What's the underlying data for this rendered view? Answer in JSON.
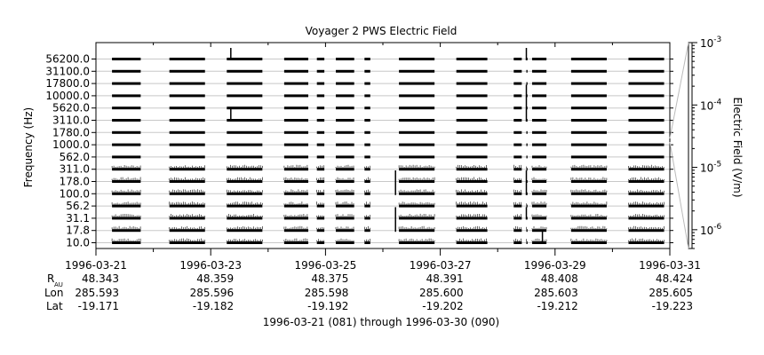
{
  "chart_data": {
    "type": "heatmap",
    "title": "Voyager 2 PWS Electric Field",
    "ylabel": "Frequency (Hz)",
    "y_tick_labels": [
      "56200.0",
      "31100.0",
      "17800.0",
      "10000.0",
      "5620.0",
      "3110.0",
      "1780.0",
      "1000.0",
      "562.0",
      "311.0",
      "178.0",
      "100.0",
      "56.2",
      "31.1",
      "17.8",
      "10.0"
    ],
    "x_tick_labels": [
      "1996-03-21",
      "1996-03-23",
      "1996-03-25",
      "1996-03-27",
      "1996-03-29",
      "1996-03-31"
    ],
    "xlim": [
      "1996-03-21",
      "1996-03-31"
    ],
    "colorbar": {
      "label": "Electric Field (V/m)",
      "scale": "log",
      "range": [
        5e-07,
        0.001
      ],
      "tick_values": [
        0.001,
        0.0001,
        1e-05,
        1e-06
      ],
      "tick_bases": [
        "10",
        "10",
        "10",
        "10"
      ],
      "tick_exponents": [
        "-3",
        "-4",
        "-5",
        "-6"
      ]
    },
    "data_intervals_days": [
      [
        0.28,
        0.78
      ],
      [
        1.28,
        1.9
      ],
      [
        2.28,
        2.9
      ],
      [
        3.28,
        3.7
      ],
      [
        3.85,
        3.98
      ],
      [
        4.18,
        4.5
      ],
      [
        4.68,
        4.78
      ],
      [
        5.28,
        5.9
      ],
      [
        6.28,
        6.82
      ],
      [
        7.28,
        7.42
      ],
      [
        7.5,
        7.52
      ],
      [
        7.6,
        7.85
      ],
      [
        8.28,
        8.9
      ],
      [
        9.28,
        9.9
      ]
    ],
    "bursts": [
      {
        "day": 2.35,
        "bands": [
          0,
          5
        ]
      },
      {
        "day": 5.22,
        "bands": [
          10,
          11,
          13,
          14
        ]
      },
      {
        "day": 7.5,
        "bands": [
          0,
          3,
          4,
          5,
          10,
          11,
          13
        ]
      },
      {
        "day": 7.78,
        "bands": [
          15
        ]
      }
    ],
    "ephemeris": {
      "labels": {
        "r_au_main": "R",
        "r_au_sub": "AU",
        "lon": "Lon",
        "lat": "Lat"
      },
      "r_au": [
        "48.343",
        "48.359",
        "48.375",
        "48.391",
        "48.408",
        "48.424"
      ],
      "lon": [
        "285.593",
        "285.596",
        "285.598",
        "285.600",
        "285.603",
        "285.605"
      ],
      "lat": [
        "-19.171",
        "-19.182",
        "-19.192",
        "-19.202",
        "-19.212",
        "-19.223"
      ]
    },
    "date_range_label": "1996-03-21 (081) through 1996-03-30 (090)"
  }
}
